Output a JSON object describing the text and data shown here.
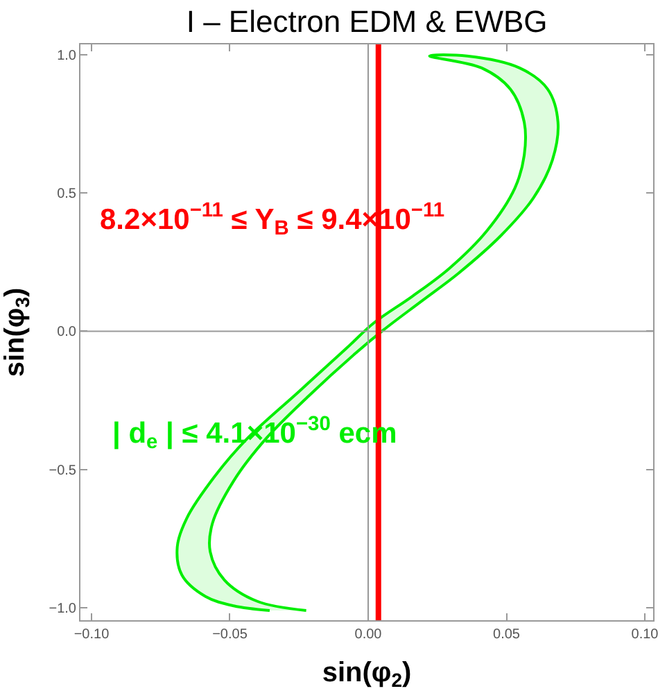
{
  "chart_data": {
    "type": "area",
    "title": "I – Electron EDM & EWBG",
    "xlabel": "sin(φ$_{2}$)",
    "ylabel": "sin(φ$_{3}$)",
    "series": [
      {
        "color": "#00ee00",
        "x": [
          -0.0224,
          -0.0402,
          -0.052,
          -0.0571,
          -0.0563,
          -0.0486,
          -0.0368,
          -0.0215,
          -0.0046,
          0.0056,
          0.0192,
          0.0327,
          0.048,
          0.0598,
          0.0666,
          0.0686,
          0.0649,
          0.0547,
          0.0358,
          0.0222,
          0.041,
          0.0514,
          0.0564,
          0.0564,
          0.053,
          0.0429,
          0.0293,
          0.0158,
          0.0022,
          -0.008,
          -0.0249,
          -0.0436,
          -0.0554,
          -0.0656,
          -0.069,
          -0.0673,
          -0.0588,
          -0.0486,
          -0.0356
        ],
        "values": [
          -1.01,
          -0.976,
          -0.899,
          -0.797,
          -0.695,
          -0.541,
          -0.387,
          -0.234,
          -0.08,
          0.005,
          0.108,
          0.21,
          0.346,
          0.483,
          0.619,
          0.756,
          0.875,
          0.952,
          0.995,
          0.995,
          0.952,
          0.875,
          0.756,
          0.636,
          0.517,
          0.363,
          0.227,
          0.125,
          0.031,
          -0.063,
          -0.217,
          -0.387,
          -0.524,
          -0.677,
          -0.78,
          -0.882,
          -0.959,
          -0.993,
          -1.01
        ]
      }
    ],
    "ref_lines": [
      {
        "axis": "x",
        "value": 0,
        "color": "#999999"
      },
      {
        "axis": "y",
        "value": 0,
        "color": "#999999"
      },
      {
        "axis": "x",
        "value": 0.0037,
        "label": "8.2×10$^{−11}$ ≤ Y$_{B}$ ≤ 9.4×10$^{−11}$",
        "color": "#ff0000"
      }
    ],
    "annotations": [
      "| d$_{e}$ | ≤ 4.1×10$^{−30}$ ecm"
    ],
    "xlim": [
      -0.104,
      0.103
    ],
    "ylim": [
      -1.045,
      1.037
    ],
    "xticks": [
      {
        "value": -0.1,
        "label": "−0.10"
      },
      {
        "value": -0.05,
        "label": "−0.05"
      },
      {
        "value": 0,
        "label": "0.00"
      },
      {
        "value": 0.05,
        "label": "0.05"
      },
      {
        "value": 0.1,
        "label": "0.10"
      }
    ],
    "yticks": [
      {
        "value": -1,
        "label": "−1.0"
      },
      {
        "value": -0.5,
        "label": "−0.5"
      },
      {
        "value": 0,
        "label": "0.0"
      },
      {
        "value": 0.5,
        "label": "0.5"
      },
      {
        "value": 1,
        "label": "1.0"
      }
    ],
    "marker": "none",
    "line_style": "solid"
  }
}
